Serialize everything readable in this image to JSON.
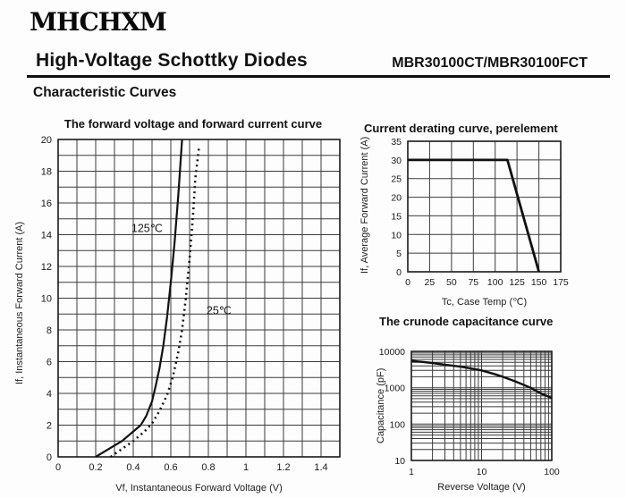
{
  "header": {
    "logo": "MHCHXM",
    "title": "High-Voltage Schottky Diodes",
    "part_number": "MBR30100CT/MBR30100FCT",
    "section_title": "Characteristic Curves"
  },
  "chart_data": [
    {
      "id": "forward-voltage-current",
      "type": "line",
      "title": "The forward voltage and forward current curve",
      "xlabel": "Vf, Instantaneous Forward Voltage (V)",
      "ylabel": "If, Instantaneous Forward Current (A)",
      "xscale": "linear",
      "yscale": "linear",
      "xlim": [
        0,
        1.5
      ],
      "ylim": [
        0,
        20
      ],
      "x_minor_step": 0.1,
      "y_minor_step": 1,
      "grid": "on",
      "legend": "inline-labels",
      "x_ticks": [
        [
          0,
          "0"
        ],
        [
          0.2,
          "0.2"
        ],
        [
          0.4,
          "0.4"
        ],
        [
          0.6,
          "0.6"
        ],
        [
          0.8,
          "0.8"
        ],
        [
          1,
          "1"
        ],
        [
          1.2,
          "1.2"
        ],
        [
          1.4,
          "1.4"
        ]
      ],
      "y_ticks": [
        [
          0,
          "0"
        ],
        [
          2,
          "2"
        ],
        [
          4,
          "4"
        ],
        [
          6,
          "6"
        ],
        [
          8,
          "8"
        ],
        [
          10,
          "10"
        ],
        [
          12,
          "12"
        ],
        [
          14,
          "14"
        ],
        [
          16,
          "16"
        ],
        [
          18,
          "18"
        ],
        [
          20,
          "20"
        ]
      ],
      "series": [
        {
          "name": "125℃",
          "style": "solid",
          "label_pos": [
            0.39,
            14.4
          ],
          "points": [
            [
              0.2,
              0
            ],
            [
              0.27,
              0.5
            ],
            [
              0.34,
              1.0
            ],
            [
              0.4,
              1.6
            ],
            [
              0.44,
              2.0
            ],
            [
              0.47,
              2.6
            ],
            [
              0.5,
              3.5
            ],
            [
              0.52,
              4.5
            ],
            [
              0.54,
              5.6
            ],
            [
              0.56,
              7.0
            ],
            [
              0.58,
              8.8
            ],
            [
              0.6,
              11.0
            ],
            [
              0.62,
              13.5
            ],
            [
              0.64,
              16.5
            ],
            [
              0.66,
              20
            ]
          ]
        },
        {
          "name": "25℃",
          "style": "dotted",
          "label_pos": [
            0.79,
            9.2
          ],
          "points": [
            [
              0.28,
              0
            ],
            [
              0.34,
              0.5
            ],
            [
              0.4,
              1.0
            ],
            [
              0.46,
              1.6
            ],
            [
              0.5,
              2.1
            ],
            [
              0.54,
              2.9
            ],
            [
              0.58,
              3.9
            ],
            [
              0.61,
              5.0
            ],
            [
              0.64,
              6.6
            ],
            [
              0.66,
              8.0
            ],
            [
              0.68,
              10.0
            ],
            [
              0.7,
              12.5
            ],
            [
              0.72,
              15.5
            ],
            [
              0.73,
              17.5
            ],
            [
              0.75,
              19.5
            ]
          ]
        }
      ]
    },
    {
      "id": "current-derating",
      "type": "line",
      "title": "Current derating curve, perelement",
      "xlabel": "Tc, Case Temp (℃)",
      "ylabel": "If, Average Forward Current (A)",
      "xscale": "linear",
      "yscale": "linear",
      "xlim": [
        0,
        175
      ],
      "ylim": [
        0,
        35
      ],
      "x_minor_step": 25,
      "y_minor_step": 5,
      "grid": "on",
      "legend": "none",
      "x_ticks": [
        [
          0,
          "0"
        ],
        [
          25,
          "25"
        ],
        [
          50,
          "50"
        ],
        [
          75,
          "75"
        ],
        [
          100,
          "100"
        ],
        [
          125,
          "125"
        ],
        [
          150,
          "150"
        ],
        [
          175,
          "175"
        ]
      ],
      "y_ticks": [
        [
          0,
          "0"
        ],
        [
          5,
          "5"
        ],
        [
          10,
          "10"
        ],
        [
          15,
          "15"
        ],
        [
          20,
          "20"
        ],
        [
          25,
          "25"
        ],
        [
          30,
          "30"
        ],
        [
          35,
          "35"
        ]
      ],
      "series": [
        {
          "name": "",
          "style": "solid",
          "points": [
            [
              0,
              30
            ],
            [
              114,
              30
            ],
            [
              150,
              0
            ]
          ]
        }
      ]
    },
    {
      "id": "crunode-capacitance",
      "type": "line",
      "title": "The crunode capacitance curve",
      "xlabel": "Reverse Voltage (V)",
      "ylabel": "Capacitance (pF)",
      "xscale": "log",
      "yscale": "log",
      "xlim": [
        1,
        100
      ],
      "ylim": [
        10,
        10000
      ],
      "grid": "on",
      "legend": "none",
      "x_ticks": [
        [
          1,
          "1"
        ],
        [
          10,
          "10"
        ],
        [
          100,
          "100"
        ]
      ],
      "y_ticks": [
        [
          10,
          "10"
        ],
        [
          100,
          "100"
        ],
        [
          1000,
          "1000"
        ],
        [
          10000,
          "10000"
        ]
      ],
      "series": [
        {
          "name": "",
          "style": "solid",
          "points": [
            [
              1,
              5500
            ],
            [
              1.5,
              5100
            ],
            [
              2,
              4800
            ],
            [
              3,
              4300
            ],
            [
              5,
              3800
            ],
            [
              7,
              3400
            ],
            [
              10,
              3000
            ],
            [
              15,
              2400
            ],
            [
              20,
              2000
            ],
            [
              30,
              1500
            ],
            [
              50,
              1000
            ],
            [
              70,
              700
            ],
            [
              100,
              520
            ]
          ]
        }
      ]
    }
  ]
}
